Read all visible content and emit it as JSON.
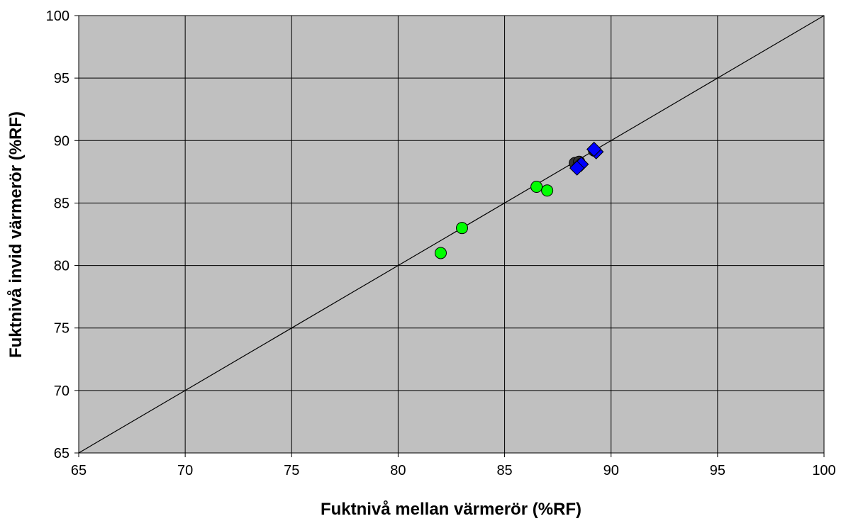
{
  "chart_data": {
    "type": "scatter",
    "title": "",
    "xlabel": "Fuktnivå mellan värmerör (%RF)",
    "ylabel": "Fuktnivå invid värmerör (%RF)",
    "xlim": [
      65,
      100
    ],
    "ylim": [
      65,
      100
    ],
    "xticks": [
      65,
      70,
      75,
      80,
      85,
      90,
      95,
      100
    ],
    "yticks": [
      65,
      70,
      75,
      80,
      85,
      90,
      95,
      100
    ],
    "grid": true,
    "plot_background": "#c0c0c0",
    "reference_line": {
      "from": [
        65,
        65
      ],
      "to": [
        100,
        100
      ],
      "color": "#000000"
    },
    "series": [
      {
        "marker": "circle",
        "color": "#00ff00",
        "points": [
          [
            82,
            81
          ],
          [
            83,
            83
          ],
          [
            86.5,
            86.3
          ],
          [
            87,
            86
          ]
        ]
      },
      {
        "marker": "circle",
        "color": "#333333",
        "points": [
          [
            88.3,
            88.2
          ],
          [
            88.5,
            88.3
          ],
          [
            89.2,
            89.2
          ]
        ]
      },
      {
        "marker": "diamond",
        "color": "#0000ff",
        "points": [
          [
            88.5,
            88
          ],
          [
            88.6,
            88.1
          ],
          [
            88.4,
            87.8
          ],
          [
            89.3,
            89.1
          ],
          [
            89.2,
            89.3
          ]
        ]
      }
    ]
  }
}
